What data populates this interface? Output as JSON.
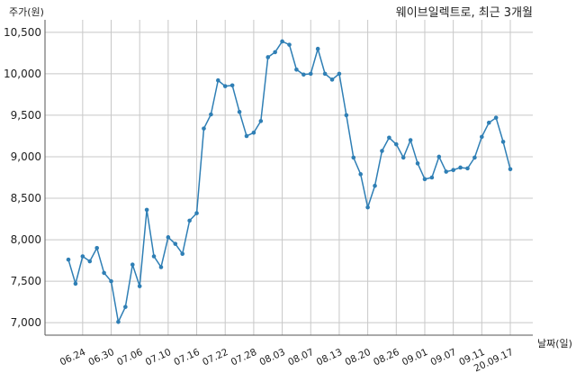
{
  "chart_data": {
    "type": "line",
    "title": "웨이브일렉트로, 최근 3개월",
    "xlabel": "날짜(일)",
    "ylabel": "주가(원)",
    "ylim": [
      6850,
      10650
    ],
    "yticks": [
      "7,000",
      "7,500",
      "8,000",
      "8,500",
      "9,000",
      "9,500",
      "10,000",
      "10,500"
    ],
    "ytick_values": [
      7000,
      7500,
      8000,
      8500,
      9000,
      9500,
      10000,
      10500
    ],
    "x_tick_labels": [
      "06.24",
      "06.30",
      "07.06",
      "07.10",
      "07.16",
      "07.22",
      "07.28",
      "08.03",
      "08.07",
      "08.13",
      "08.20",
      "08.26",
      "09.01",
      "09.07",
      "09.11",
      "20.09.17"
    ],
    "x_tick_indices": [
      2,
      6,
      10,
      14,
      18,
      22,
      26,
      30,
      34,
      38,
      42,
      46,
      50,
      54,
      58,
      62
    ],
    "grid": true,
    "line_color": "#2f7fb5",
    "series": [
      {
        "values": [
          7760,
          7470,
          7800,
          7740,
          7900,
          7600,
          7500,
          7010,
          7190,
          7700,
          7440,
          8360,
          7800,
          7670,
          8030,
          7950,
          7830,
          8230,
          8320,
          9340,
          9510,
          9920,
          9850,
          9860,
          9540,
          9250,
          9290,
          9430,
          10200,
          10260,
          10390,
          10350,
          10050,
          9990,
          10000,
          10300,
          10000,
          9930,
          10000,
          9500,
          8990,
          8790,
          8390,
          8650,
          9070,
          9230,
          9150,
          8990,
          9200,
          8920,
          8730,
          8750,
          9000,
          8820,
          8840,
          8870,
          8860,
          8990,
          9240,
          9410,
          9470,
          9180,
          8850
        ]
      }
    ]
  }
}
